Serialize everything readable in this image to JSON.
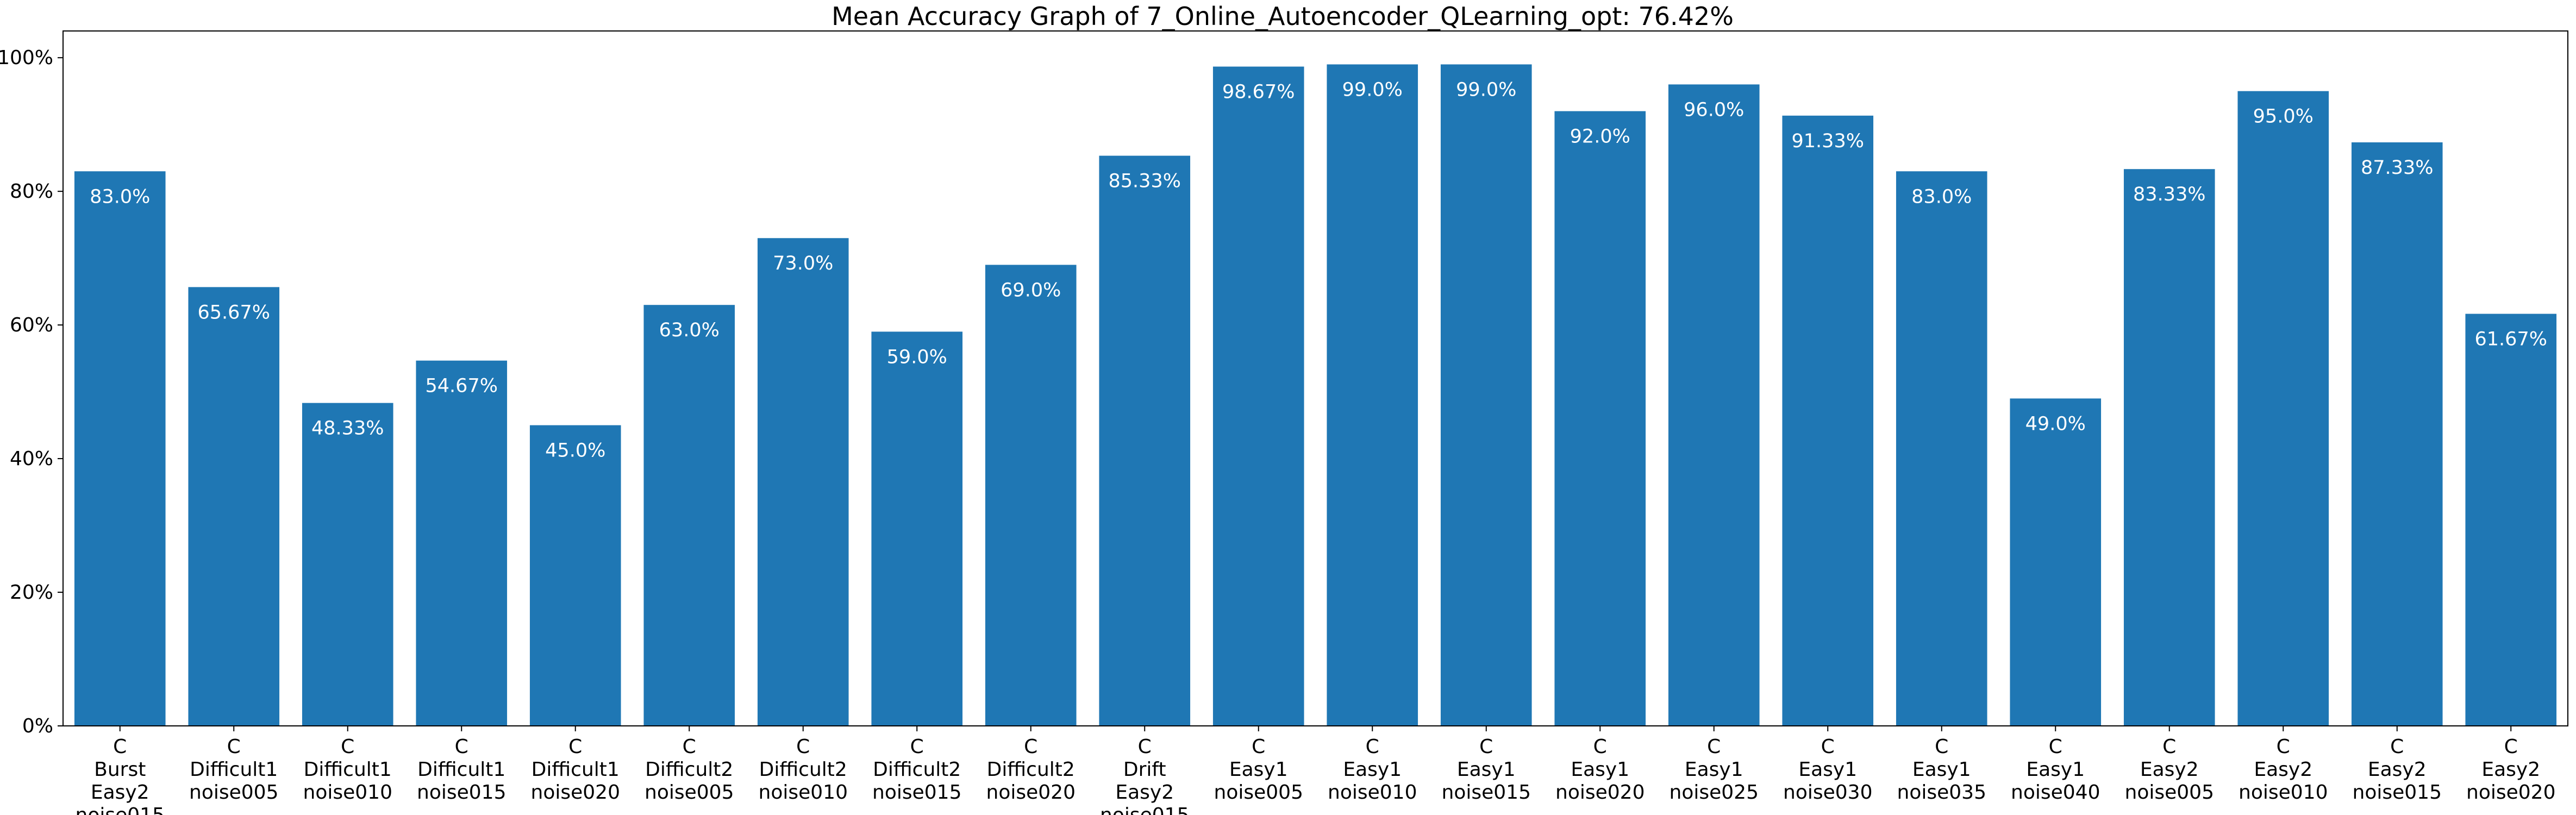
{
  "chart_data": {
    "type": "bar",
    "title": "Mean Accuracy Graph of 7_Online_Autoencoder_QLearning_opt: 76.42%",
    "xlabel": "",
    "ylabel": "",
    "ylim": [
      0,
      104
    ],
    "yticks": [
      0,
      20,
      40,
      60,
      80,
      100
    ],
    "ytick_labels": [
      "0%",
      "20%",
      "40%",
      "60%",
      "80%",
      "100%"
    ],
    "bar_color": "#1f77b4",
    "label_color": "#ffffff",
    "grid": false,
    "categories": [
      [
        "C",
        "Burst",
        "Easy2",
        "noise015"
      ],
      [
        "C",
        "Difficult1",
        "noise005"
      ],
      [
        "C",
        "Difficult1",
        "noise010"
      ],
      [
        "C",
        "Difficult1",
        "noise015"
      ],
      [
        "C",
        "Difficult1",
        "noise020"
      ],
      [
        "C",
        "Difficult2",
        "noise005"
      ],
      [
        "C",
        "Difficult2",
        "noise010"
      ],
      [
        "C",
        "Difficult2",
        "noise015"
      ],
      [
        "C",
        "Difficult2",
        "noise020"
      ],
      [
        "C",
        "Drift",
        "Easy2",
        "noise015"
      ],
      [
        "C",
        "Easy1",
        "noise005"
      ],
      [
        "C",
        "Easy1",
        "noise010"
      ],
      [
        "C",
        "Easy1",
        "noise015"
      ],
      [
        "C",
        "Easy1",
        "noise020"
      ],
      [
        "C",
        "Easy1",
        "noise025"
      ],
      [
        "C",
        "Easy1",
        "noise030"
      ],
      [
        "C",
        "Easy1",
        "noise035"
      ],
      [
        "C",
        "Easy1",
        "noise040"
      ],
      [
        "C",
        "Easy2",
        "noise005"
      ],
      [
        "C",
        "Easy2",
        "noise010"
      ],
      [
        "C",
        "Easy2",
        "noise015"
      ],
      [
        "C",
        "Easy2",
        "noise020"
      ]
    ],
    "values": [
      83.0,
      65.67,
      48.33,
      54.67,
      45.0,
      63.0,
      73.0,
      59.0,
      69.0,
      85.33,
      98.67,
      99.0,
      99.0,
      92.0,
      96.0,
      91.33,
      83.0,
      49.0,
      83.33,
      95.0,
      87.33,
      61.67
    ],
    "value_labels": [
      "83.0%",
      "65.67%",
      "48.33%",
      "54.67%",
      "45.0%",
      "63.0%",
      "73.0%",
      "59.0%",
      "69.0%",
      "85.33%",
      "98.67%",
      "99.0%",
      "99.0%",
      "92.0%",
      "96.0%",
      "91.33%",
      "83.0%",
      "49.0%",
      "83.33%",
      "95.0%",
      "87.33%",
      "61.67%"
    ]
  }
}
